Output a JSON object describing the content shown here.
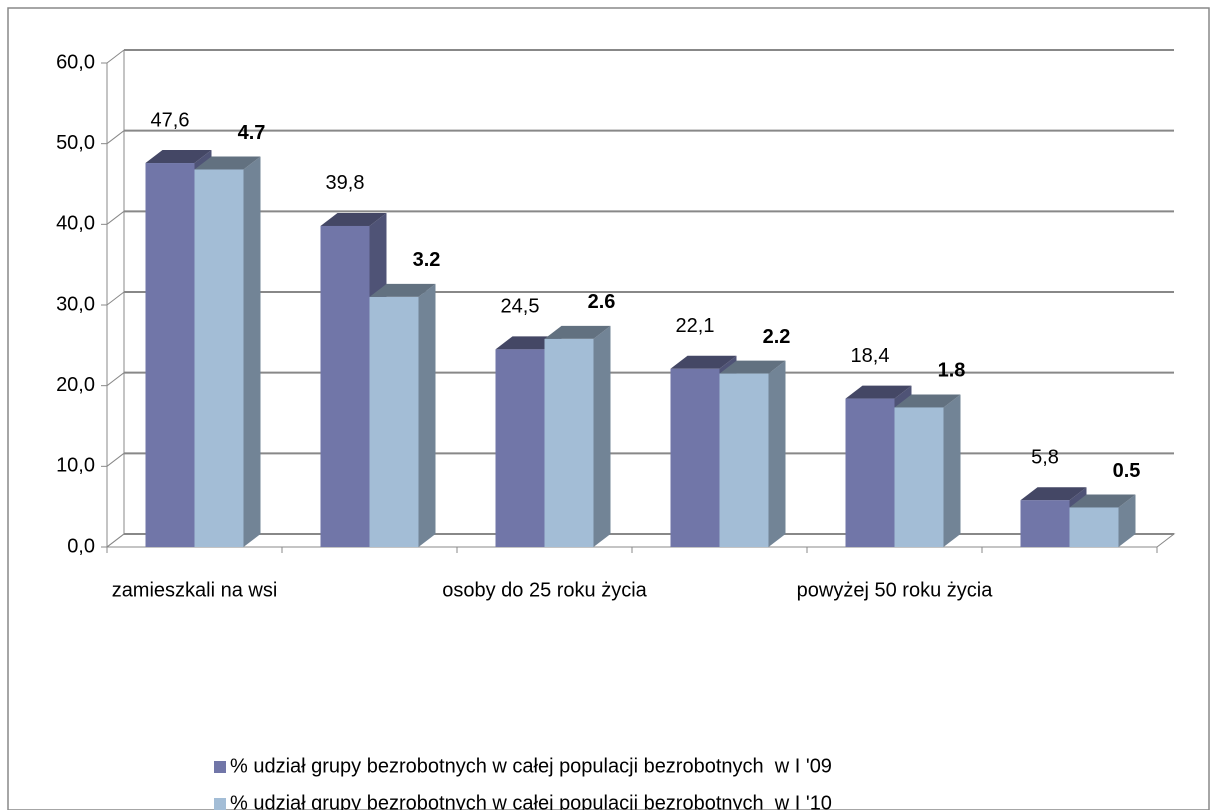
{
  "chart_data": {
    "type": "bar3d",
    "categories": [
      "zamieszkali na wsi",
      null,
      "osoby do 25 roku życia",
      null,
      "powyżej 50 roku życia",
      null
    ],
    "series": [
      {
        "name": "% udział grupy bezrobotnych w całej populacji bezrobotnych  w I '09",
        "color": "#7176a8",
        "values": [
          47.6,
          39.8,
          24.5,
          22.1,
          18.4,
          5.8
        ],
        "value_labels": [
          "47,6",
          "39,8",
          "24,5",
          "22,1",
          "18,4",
          "5,8"
        ]
      },
      {
        "name": "% udział grupy bezrobotnych w całej populacji bezrobotnych  w I '10",
        "color": "#a3bdd6",
        "values": [
          46.8,
          31.0,
          25.8,
          21.5,
          17.3,
          4.9
        ]
      }
    ],
    "annotations": [
      "4.7",
      "3.2",
      "2.6",
      "2.2",
      "1.8",
      "0.5"
    ],
    "ylim": [
      0,
      60
    ],
    "yticks": [
      {
        "value": 0,
        "label": "0,0"
      },
      {
        "value": 10,
        "label": "10,0"
      },
      {
        "value": 20,
        "label": "20,0"
      },
      {
        "value": 30,
        "label": "30,0"
      },
      {
        "value": 40,
        "label": "40,0"
      },
      {
        "value": 50,
        "label": "50,0"
      },
      {
        "value": 60,
        "label": "60,0"
      }
    ],
    "grid": true,
    "legend": "bottom"
  }
}
